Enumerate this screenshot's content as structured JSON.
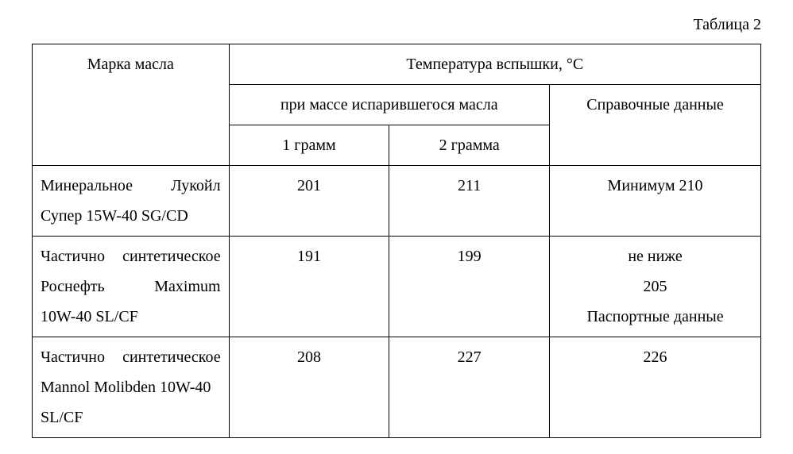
{
  "caption": "Таблица 2",
  "headers": {
    "brand": "Марка масла",
    "temp_group": "Температура вспышки, °C",
    "mass_group": "при массе испарившегося масла",
    "g1": "1 грамм",
    "g2": "2 грамма",
    "ref": "Справочные данные"
  },
  "rows": [
    {
      "brand_l1": "Минеральное Лукойл",
      "brand_l2": "Супер 15W-40 SG/CD",
      "g1": "201",
      "g2": "211",
      "ref_l1": "Минимум 210",
      "ref_l2": "",
      "ref_l3": ""
    },
    {
      "brand_l1": "Частично синтетическое",
      "brand_l2": "Роснефть Maximum",
      "brand_l3": "10W-40 SL/CF",
      "g1": "191",
      "g2": "199",
      "ref_l1": "не ниже",
      "ref_l2": "205",
      "ref_l3": "Паспортные данные"
    },
    {
      "brand_l1": "Частично синтетическое",
      "brand_l2": "Mannol Molibden 10W-40",
      "brand_l3": "SL/CF",
      "g1": "208",
      "g2": "227",
      "ref_l1": "226",
      "ref_l2": "",
      "ref_l3": ""
    }
  ]
}
